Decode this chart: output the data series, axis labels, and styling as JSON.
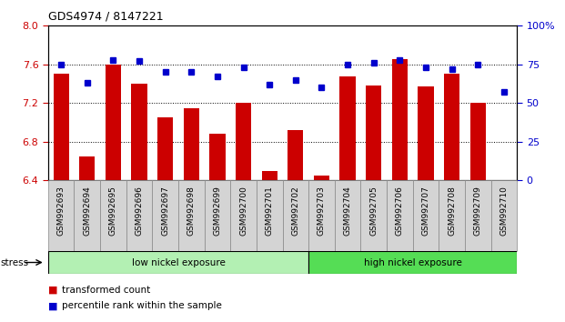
{
  "title": "GDS4974 / 8147221",
  "samples": [
    "GSM992693",
    "GSM992694",
    "GSM992695",
    "GSM992696",
    "GSM992697",
    "GSM992698",
    "GSM992699",
    "GSM992700",
    "GSM992701",
    "GSM992702",
    "GSM992703",
    "GSM992704",
    "GSM992705",
    "GSM992706",
    "GSM992707",
    "GSM992708",
    "GSM992709",
    "GSM992710"
  ],
  "bar_values": [
    7.5,
    6.65,
    7.6,
    7.4,
    7.05,
    7.15,
    6.88,
    7.2,
    6.5,
    6.92,
    6.45,
    7.48,
    7.38,
    7.65,
    7.37,
    7.5,
    7.2,
    6.4
  ],
  "dot_values": [
    75,
    63,
    78,
    77,
    70,
    70,
    67,
    73,
    62,
    65,
    60,
    75,
    76,
    78,
    73,
    72,
    75,
    57
  ],
  "ylim_left": [
    6.4,
    8.0
  ],
  "ylim_right": [
    0,
    100
  ],
  "yticks_left": [
    6.4,
    6.8,
    7.2,
    7.6,
    8.0
  ],
  "yticks_right": [
    0,
    25,
    50,
    75,
    100
  ],
  "bar_color": "#cc0000",
  "dot_color": "#0000cc",
  "group1_label": "low nickel exposure",
  "group2_label": "high nickel exposure",
  "group1_color": "#b3f0b3",
  "group2_color": "#55dd55",
  "group1_count": 10,
  "stress_label": "stress",
  "legend1": "transformed count",
  "legend2": "percentile rank within the sample",
  "tick_label_color_left": "#cc0000",
  "tick_label_color_right": "#0000cc",
  "xlabel_bg": "#d0d0d0"
}
